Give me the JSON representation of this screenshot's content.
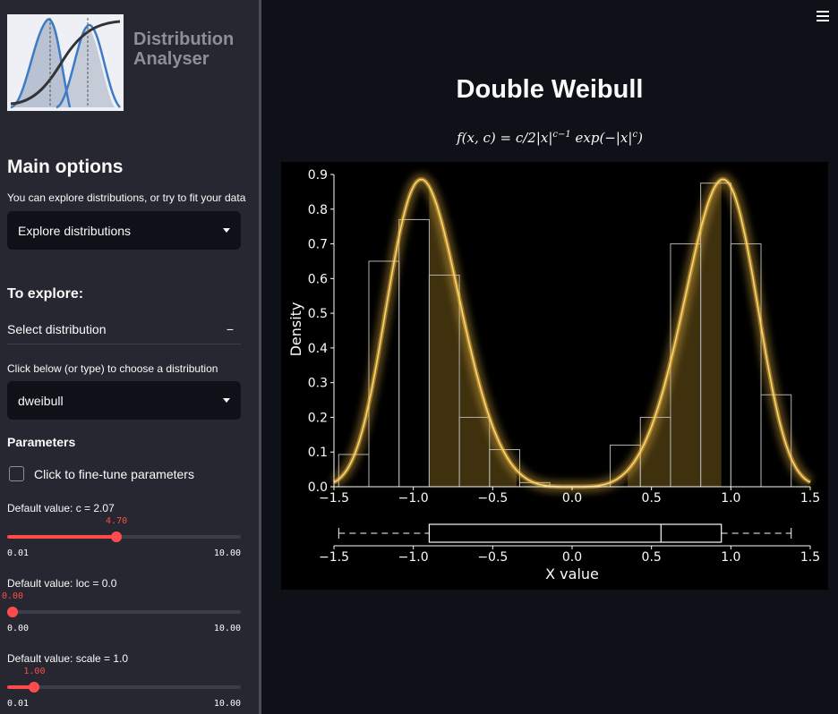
{
  "app": {
    "title_line1": "Distribution",
    "title_line2": "Analyser"
  },
  "sidebar": {
    "main_options_heading": "Main options",
    "main_options_help": "You can explore distributions, or try to fit your data",
    "mode_select_value": "Explore distributions",
    "to_explore_heading": "To explore:",
    "expander_label": "Select distribution",
    "expander_toggle": "−",
    "choose_help": "Click below (or type) to choose a distribution",
    "distribution_select_value": "dweibull",
    "parameters_heading": "Parameters",
    "finetune_label": "Click to fine-tune parameters",
    "sliders": [
      {
        "label": "Default value: c = 2.07",
        "value": "4.70",
        "min": "0.01",
        "max": "10.00",
        "fraction": 0.47
      },
      {
        "label": "Default value: loc = 0.0",
        "value": "0.00",
        "min": "0.00",
        "max": "10.00",
        "fraction": 0.0
      },
      {
        "label": "Default value: scale = 1.0",
        "value": "1.00",
        "min": "0.01",
        "max": "10.00",
        "fraction": 0.099
      }
    ]
  },
  "main": {
    "title": "Double Weibull",
    "formula_label": "f(x, c) = c/2|x|^(c−1) exp(−|x|^c)"
  },
  "colors": {
    "accent": "#ff4b4b",
    "curve": "#f5c04a",
    "background": "#0e1117",
    "sidebar": "#262730"
  },
  "chart_data": {
    "type": "histogram",
    "ylabel": "Density",
    "xlabel": "X value",
    "xlim": [
      -1.5,
      1.5
    ],
    "ylim": [
      0,
      0.9
    ],
    "xticks": [
      "−1.5",
      "−1.0",
      "−0.5",
      "0.0",
      "0.5",
      "1.0",
      "1.5"
    ],
    "yticks": [
      "0.0",
      "0.1",
      "0.2",
      "0.3",
      "0.4",
      "0.5",
      "0.6",
      "0.7",
      "0.8",
      "0.9"
    ],
    "histogram": {
      "bin_edges": [
        -1.47,
        -1.28,
        -1.09,
        -0.9,
        -0.71,
        -0.52,
        -0.33,
        -0.14,
        0.05,
        0.24,
        0.43,
        0.62,
        0.81,
        1.0,
        1.19,
        1.38
      ],
      "densities": [
        0.093,
        0.65,
        0.77,
        0.61,
        0.2,
        0.107,
        0.012,
        0.0,
        0.0,
        0.12,
        0.2,
        0.7,
        0.875,
        0.7,
        0.265
      ]
    },
    "pdf": {
      "name": "dweibull",
      "c": 4.7,
      "loc": 0.0,
      "scale": 1.0
    },
    "boxplot": {
      "whisker_low": -1.47,
      "q1": -0.9,
      "median": 0.56,
      "q3": 0.94,
      "whisker_high": 1.38
    }
  }
}
